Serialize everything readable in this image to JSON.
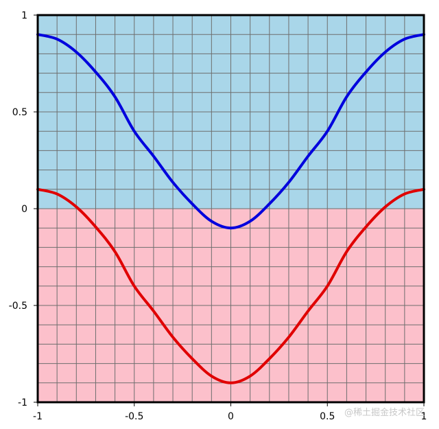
{
  "chart_data": {
    "type": "line",
    "title": "",
    "xlabel": "",
    "ylabel": "",
    "xlim": [
      -1,
      1
    ],
    "ylim": [
      -1,
      1
    ],
    "grid": true,
    "x_ticks": [
      "-1",
      "-0.5",
      "0",
      "0.5",
      "1"
    ],
    "y_ticks": [
      "1",
      "0.5",
      "0",
      "-0.5",
      "-1"
    ],
    "regions": [
      {
        "name": "",
        "y_range": [
          0,
          1
        ],
        "color": "#a9d6e9"
      },
      {
        "name": "",
        "y_range": [
          -1,
          0
        ],
        "color": "#fcc0cb"
      }
    ],
    "series": [
      {
        "color": "#0000dd",
        "x": [
          -1,
          -0.9,
          -0.8,
          -0.7,
          -0.6,
          -0.5,
          -0.4,
          -0.3,
          -0.2,
          -0.1,
          0,
          0.1,
          0.2,
          0.3,
          0.4,
          0.5,
          0.6,
          0.7,
          0.8,
          0.9,
          1
        ],
        "y": [
          0.9,
          0.876,
          0.809,
          0.706,
          0.578,
          0.4,
          0.271,
          0.136,
          0.025,
          -0.065,
          -0.1,
          -0.065,
          0.025,
          0.136,
          0.271,
          0.4,
          0.578,
          0.706,
          0.809,
          0.876,
          0.9
        ]
      },
      {
        "color": "#e00000",
        "x": [
          -1,
          -0.9,
          -0.8,
          -0.7,
          -0.6,
          -0.5,
          -0.4,
          -0.3,
          -0.2,
          -0.1,
          0,
          0.1,
          0.2,
          0.3,
          0.4,
          0.5,
          0.6,
          0.7,
          0.8,
          0.9,
          1
        ],
        "y": [
          0.1,
          0.076,
          0.009,
          -0.094,
          -0.222,
          -0.4,
          -0.529,
          -0.664,
          -0.775,
          -0.865,
          -0.9,
          -0.865,
          -0.775,
          -0.664,
          -0.529,
          -0.4,
          -0.222,
          -0.094,
          0.009,
          0.076,
          0.1
        ]
      }
    ]
  },
  "watermark": "@稀土掘金技术社区"
}
